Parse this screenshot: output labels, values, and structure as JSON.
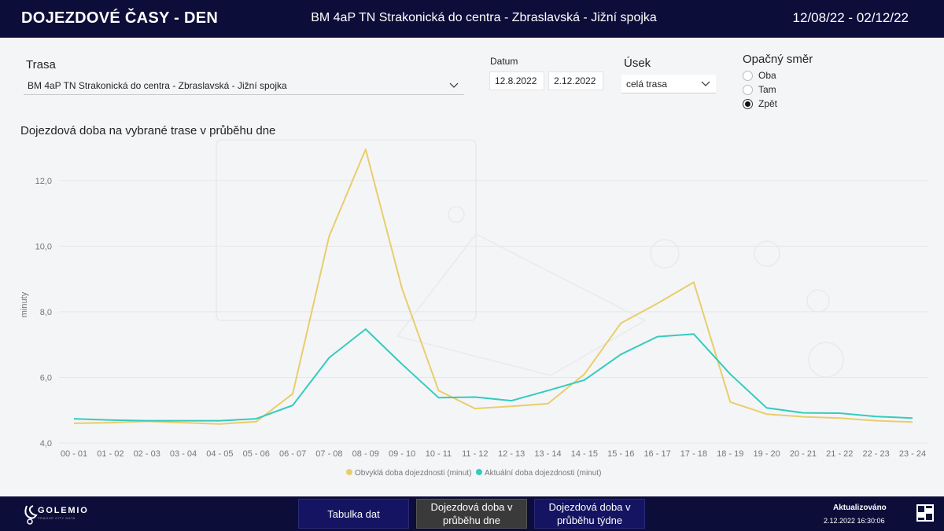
{
  "header": {
    "app_title": "DOJEZDOVÉ ČASY - DEN",
    "route_title": "BM 4aP TN Strakonická do centra - Zbraslavská - Jižní spojka",
    "date_range": "12/08/22 - 02/12/22"
  },
  "filters": {
    "trasa_label": "Trasa",
    "trasa_value": "BM 4aP TN Strakonická do centra - Zbraslavská - Jižní spojka",
    "datum_label": "Datum",
    "date_from": "12.8.2022",
    "date_to": "2.12.2022",
    "usek_label": "Úsek",
    "usek_value": "celá trasa",
    "smer_label": "Opačný směr",
    "smer_options": [
      "Oba",
      "Tam",
      "Zpět"
    ],
    "smer_selected": "Zpět"
  },
  "chart_title": "Dojezdová doba na vybrané trase v průběhu dne",
  "chart_data": {
    "type": "line",
    "ylabel": "minuty",
    "xlabel": "",
    "ylim": [
      4.0,
      13.0
    ],
    "yticks": [
      "4,0",
      "6,0",
      "8,0",
      "10,0",
      "12,0"
    ],
    "ytick_values": [
      4,
      6,
      8,
      10,
      12
    ],
    "grid": true,
    "legend_position": "bottom",
    "categories": [
      "00 - 01",
      "01 - 02",
      "02 - 03",
      "03 - 04",
      "04 - 05",
      "05 - 06",
      "06 - 07",
      "07 - 08",
      "08 - 09",
      "09 - 10",
      "10 - 11",
      "11 - 12",
      "12 - 13",
      "13 - 14",
      "14 - 15",
      "15 - 16",
      "16 - 17",
      "17 - 18",
      "18 - 19",
      "19 - 20",
      "20 - 21",
      "21 - 22",
      "22 - 23",
      "23 - 24"
    ],
    "series": [
      {
        "name": "Obvyklá doba dojezdnosti (minut)",
        "color": "#e8ce6a",
        "values": [
          4.6,
          4.62,
          4.66,
          4.62,
          4.58,
          4.65,
          5.5,
          10.3,
          12.95,
          8.7,
          5.6,
          5.05,
          5.12,
          5.2,
          6.1,
          7.65,
          8.25,
          8.9,
          5.25,
          4.88,
          4.8,
          4.76,
          4.68,
          4.64
        ]
      },
      {
        "name": "Aktuální doba dojezdnosti (minut)",
        "color": "#35cbbd",
        "values": [
          4.74,
          4.7,
          4.68,
          4.68,
          4.68,
          4.74,
          5.15,
          6.6,
          7.47,
          6.4,
          5.38,
          5.4,
          5.29,
          5.6,
          5.92,
          6.7,
          7.24,
          7.32,
          6.1,
          5.07,
          4.92,
          4.91,
          4.81,
          4.76
        ]
      }
    ]
  },
  "footer": {
    "logo_text": "GOLEMIO",
    "logo_sub": "PRAGUE CITY DATA",
    "nav": [
      "Tabulka dat",
      "Dojezdová doba v průběhu dne",
      "Dojezdová doba v průběhu týdne"
    ],
    "updated_label": "Aktualizováno",
    "updated_value": "2.12.2022 16:30:06"
  }
}
